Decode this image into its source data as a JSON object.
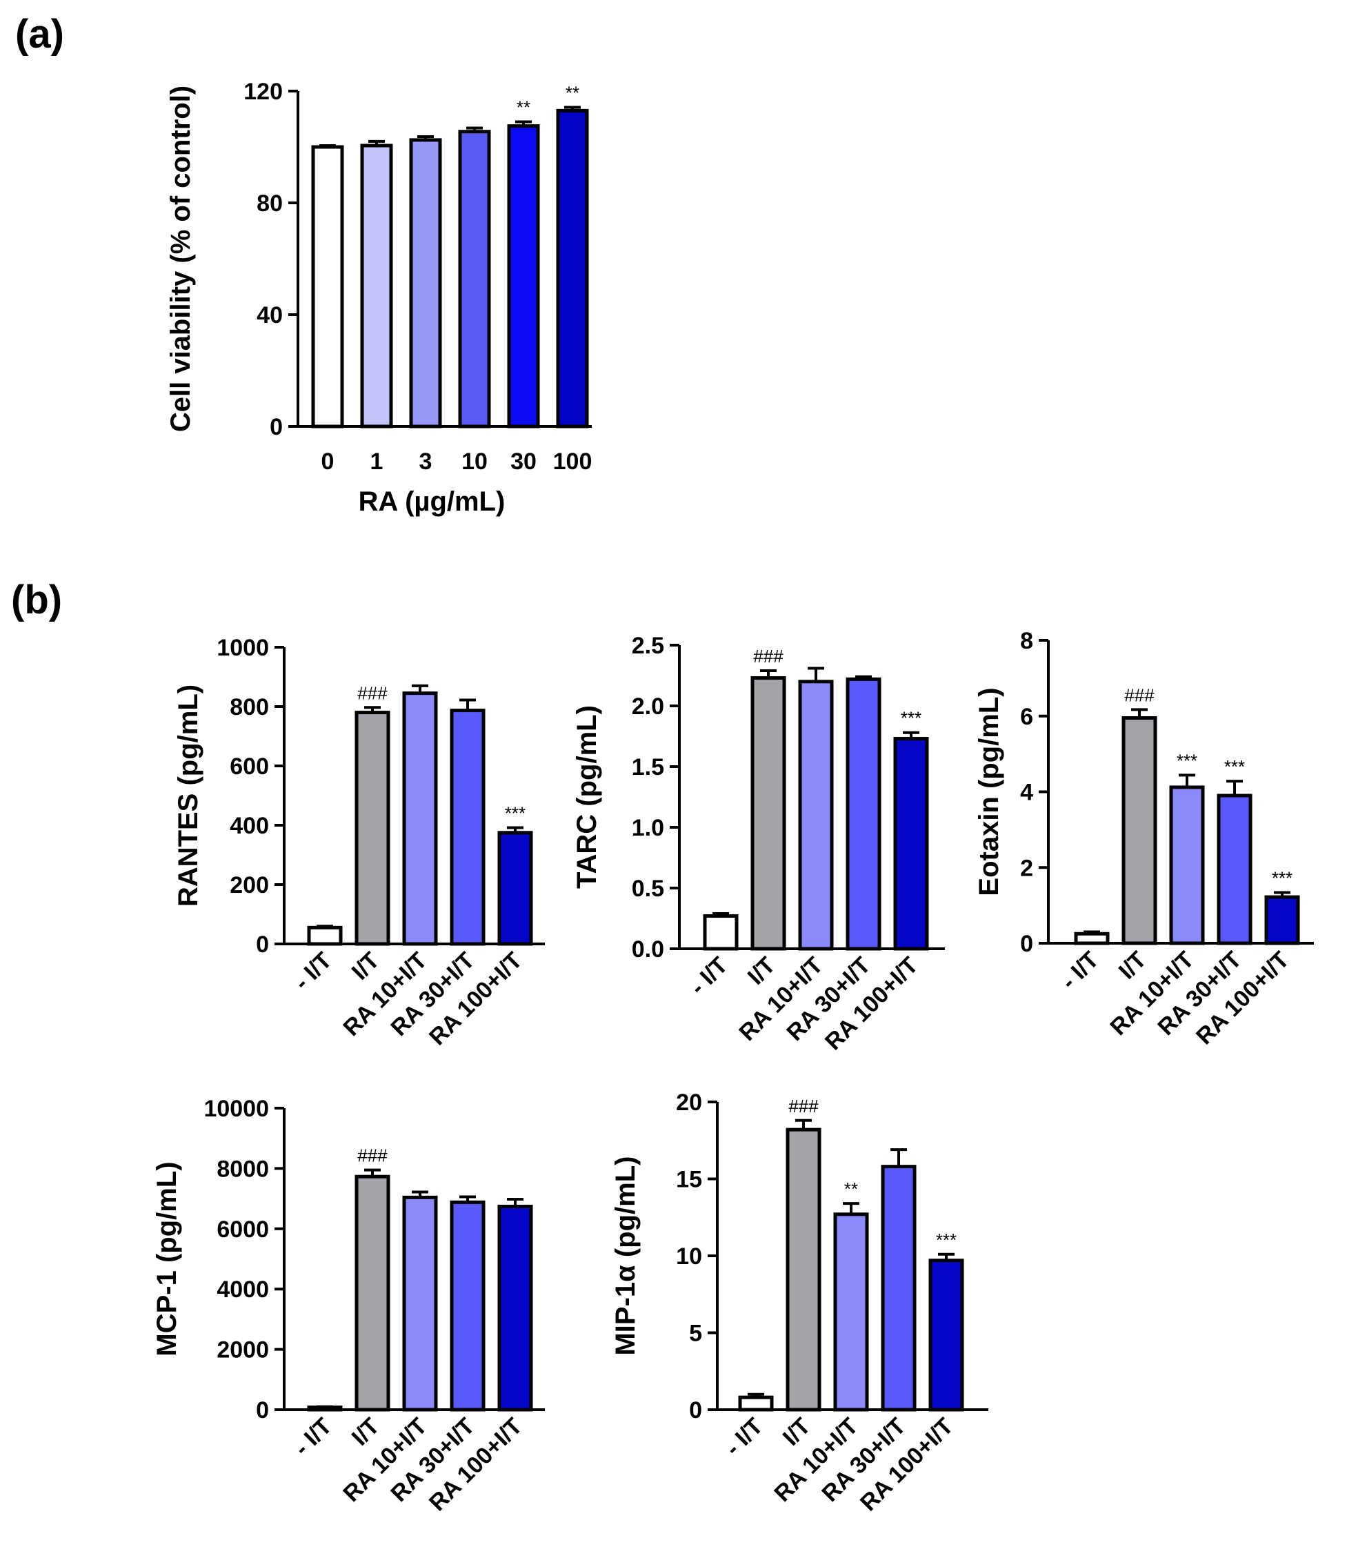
{
  "panel_labels": {
    "a": "(a)",
    "b": "(b)"
  },
  "chart_data": [
    {
      "id": "viability",
      "type": "bar",
      "ylabel": "Cell viability (% of control)",
      "xlabel": "RA (µg/mL)",
      "ylim": [
        0,
        120
      ],
      "yticks": [
        0,
        40,
        80,
        120
      ],
      "ytick_labels": [
        "0",
        "40",
        "80",
        "120"
      ],
      "categories": [
        "0",
        "1",
        "3",
        "10",
        "30",
        "100"
      ],
      "values": [
        100,
        100.5,
        102.5,
        105.5,
        107.5,
        113
      ],
      "errors": [
        0.5,
        1.5,
        1.2,
        1.3,
        1.5,
        1.2
      ],
      "annotations": [
        "",
        "",
        "",
        "",
        "**",
        "**"
      ],
      "colors": [
        "#ffffff",
        "#c4c4fa",
        "#9898f6",
        "#5b5bf6",
        "#0b0bf4",
        "#0303c5"
      ]
    },
    {
      "id": "rantes",
      "type": "bar",
      "ylabel": "RANTES (pg/mL)",
      "ylim": [
        0,
        1000
      ],
      "yticks": [
        0,
        200,
        400,
        600,
        800,
        1000
      ],
      "ytick_labels": [
        "0",
        "200",
        "400",
        "600",
        "800",
        "1000"
      ],
      "categories": [
        "- I/T",
        "I/T",
        "RA 10+I/T",
        "RA 30+I/T",
        "RA 100+I/T"
      ],
      "values": [
        55,
        780,
        845,
        787,
        375
      ],
      "errors": [
        5,
        17,
        25,
        35,
        17
      ],
      "annotations": [
        "",
        "###",
        "",
        "",
        "***"
      ],
      "colors": [
        "#ffffff",
        "#a4a4ab",
        "#8b8bfb",
        "#5a5afc",
        "#0606c6"
      ]
    },
    {
      "id": "tarc",
      "type": "bar",
      "ylabel": "TARC (pg/mL)",
      "ylim": [
        0,
        2.5
      ],
      "yticks": [
        0,
        0.5,
        1.0,
        1.5,
        2.0,
        2.5
      ],
      "ytick_labels": [
        "0.0",
        "0.5",
        "1.0",
        "1.5",
        "2.0",
        "2.5"
      ],
      "categories": [
        "- I/T",
        "I/T",
        "RA 10+I/T",
        "RA 30+I/T",
        "RA 100+I/T"
      ],
      "values": [
        0.27,
        2.23,
        2.2,
        2.22,
        1.73
      ],
      "errors": [
        0.02,
        0.06,
        0.11,
        0.02,
        0.05
      ],
      "annotations": [
        "",
        "###",
        "",
        "",
        "***"
      ],
      "colors": [
        "#ffffff",
        "#a4a4ab",
        "#8b8bfb",
        "#5a5afc",
        "#0606c6"
      ]
    },
    {
      "id": "eotaxin",
      "type": "bar",
      "ylabel": "Eotaxin (pg/mL)",
      "ylim": [
        0,
        8
      ],
      "yticks": [
        0,
        2,
        4,
        6,
        8
      ],
      "ytick_labels": [
        "0",
        "2",
        "4",
        "6",
        "8"
      ],
      "categories": [
        "- I/T",
        "I/T",
        "RA 10+I/T",
        "RA 30+I/T",
        "RA 100+I/T"
      ],
      "values": [
        0.25,
        5.95,
        4.12,
        3.9,
        1.22
      ],
      "errors": [
        0.05,
        0.22,
        0.32,
        0.38,
        0.12
      ],
      "annotations": [
        "",
        "###",
        "***",
        "***",
        "***"
      ],
      "colors": [
        "#ffffff",
        "#a4a4ab",
        "#8b8bfb",
        "#5a5afc",
        "#0606c6"
      ]
    },
    {
      "id": "mcp1",
      "type": "bar",
      "ylabel": "MCP-1 (pg/mL)",
      "ylim": [
        0,
        10000
      ],
      "yticks": [
        0,
        2000,
        4000,
        6000,
        8000,
        10000
      ],
      "ytick_labels": [
        "0",
        "2000",
        "4000",
        "6000",
        "8000",
        "10000"
      ],
      "categories": [
        "- I/T",
        "I/T",
        "RA 10+I/T",
        "RA 30+I/T",
        "RA 100+I/T"
      ],
      "values": [
        80,
        7730,
        7040,
        6880,
        6740
      ],
      "errors": [
        20,
        220,
        180,
        180,
        240
      ],
      "annotations": [
        "",
        "###",
        "",
        "",
        ""
      ],
      "colors": [
        "#ffffff",
        "#a4a4ab",
        "#8b8bfb",
        "#5a5afc",
        "#0606c6"
      ]
    },
    {
      "id": "mip1a",
      "type": "bar",
      "ylabel": "MIP-1α (pg/mL)",
      "ylim": [
        0,
        20
      ],
      "yticks": [
        0,
        5,
        10,
        15,
        20
      ],
      "ytick_labels": [
        "0",
        "5",
        "10",
        "15",
        "20"
      ],
      "categories": [
        "- I/T",
        "I/T",
        "RA 10+I/T",
        "RA 30+I/T",
        "RA 100+I/T"
      ],
      "values": [
        0.8,
        18.2,
        12.7,
        15.8,
        9.7
      ],
      "errors": [
        0.2,
        0.6,
        0.7,
        1.1,
        0.4
      ],
      "annotations": [
        "",
        "###",
        "**",
        "",
        "***"
      ],
      "colors": [
        "#ffffff",
        "#a4a4ab",
        "#8b8bfb",
        "#5a5afc",
        "#0606c6"
      ]
    }
  ]
}
